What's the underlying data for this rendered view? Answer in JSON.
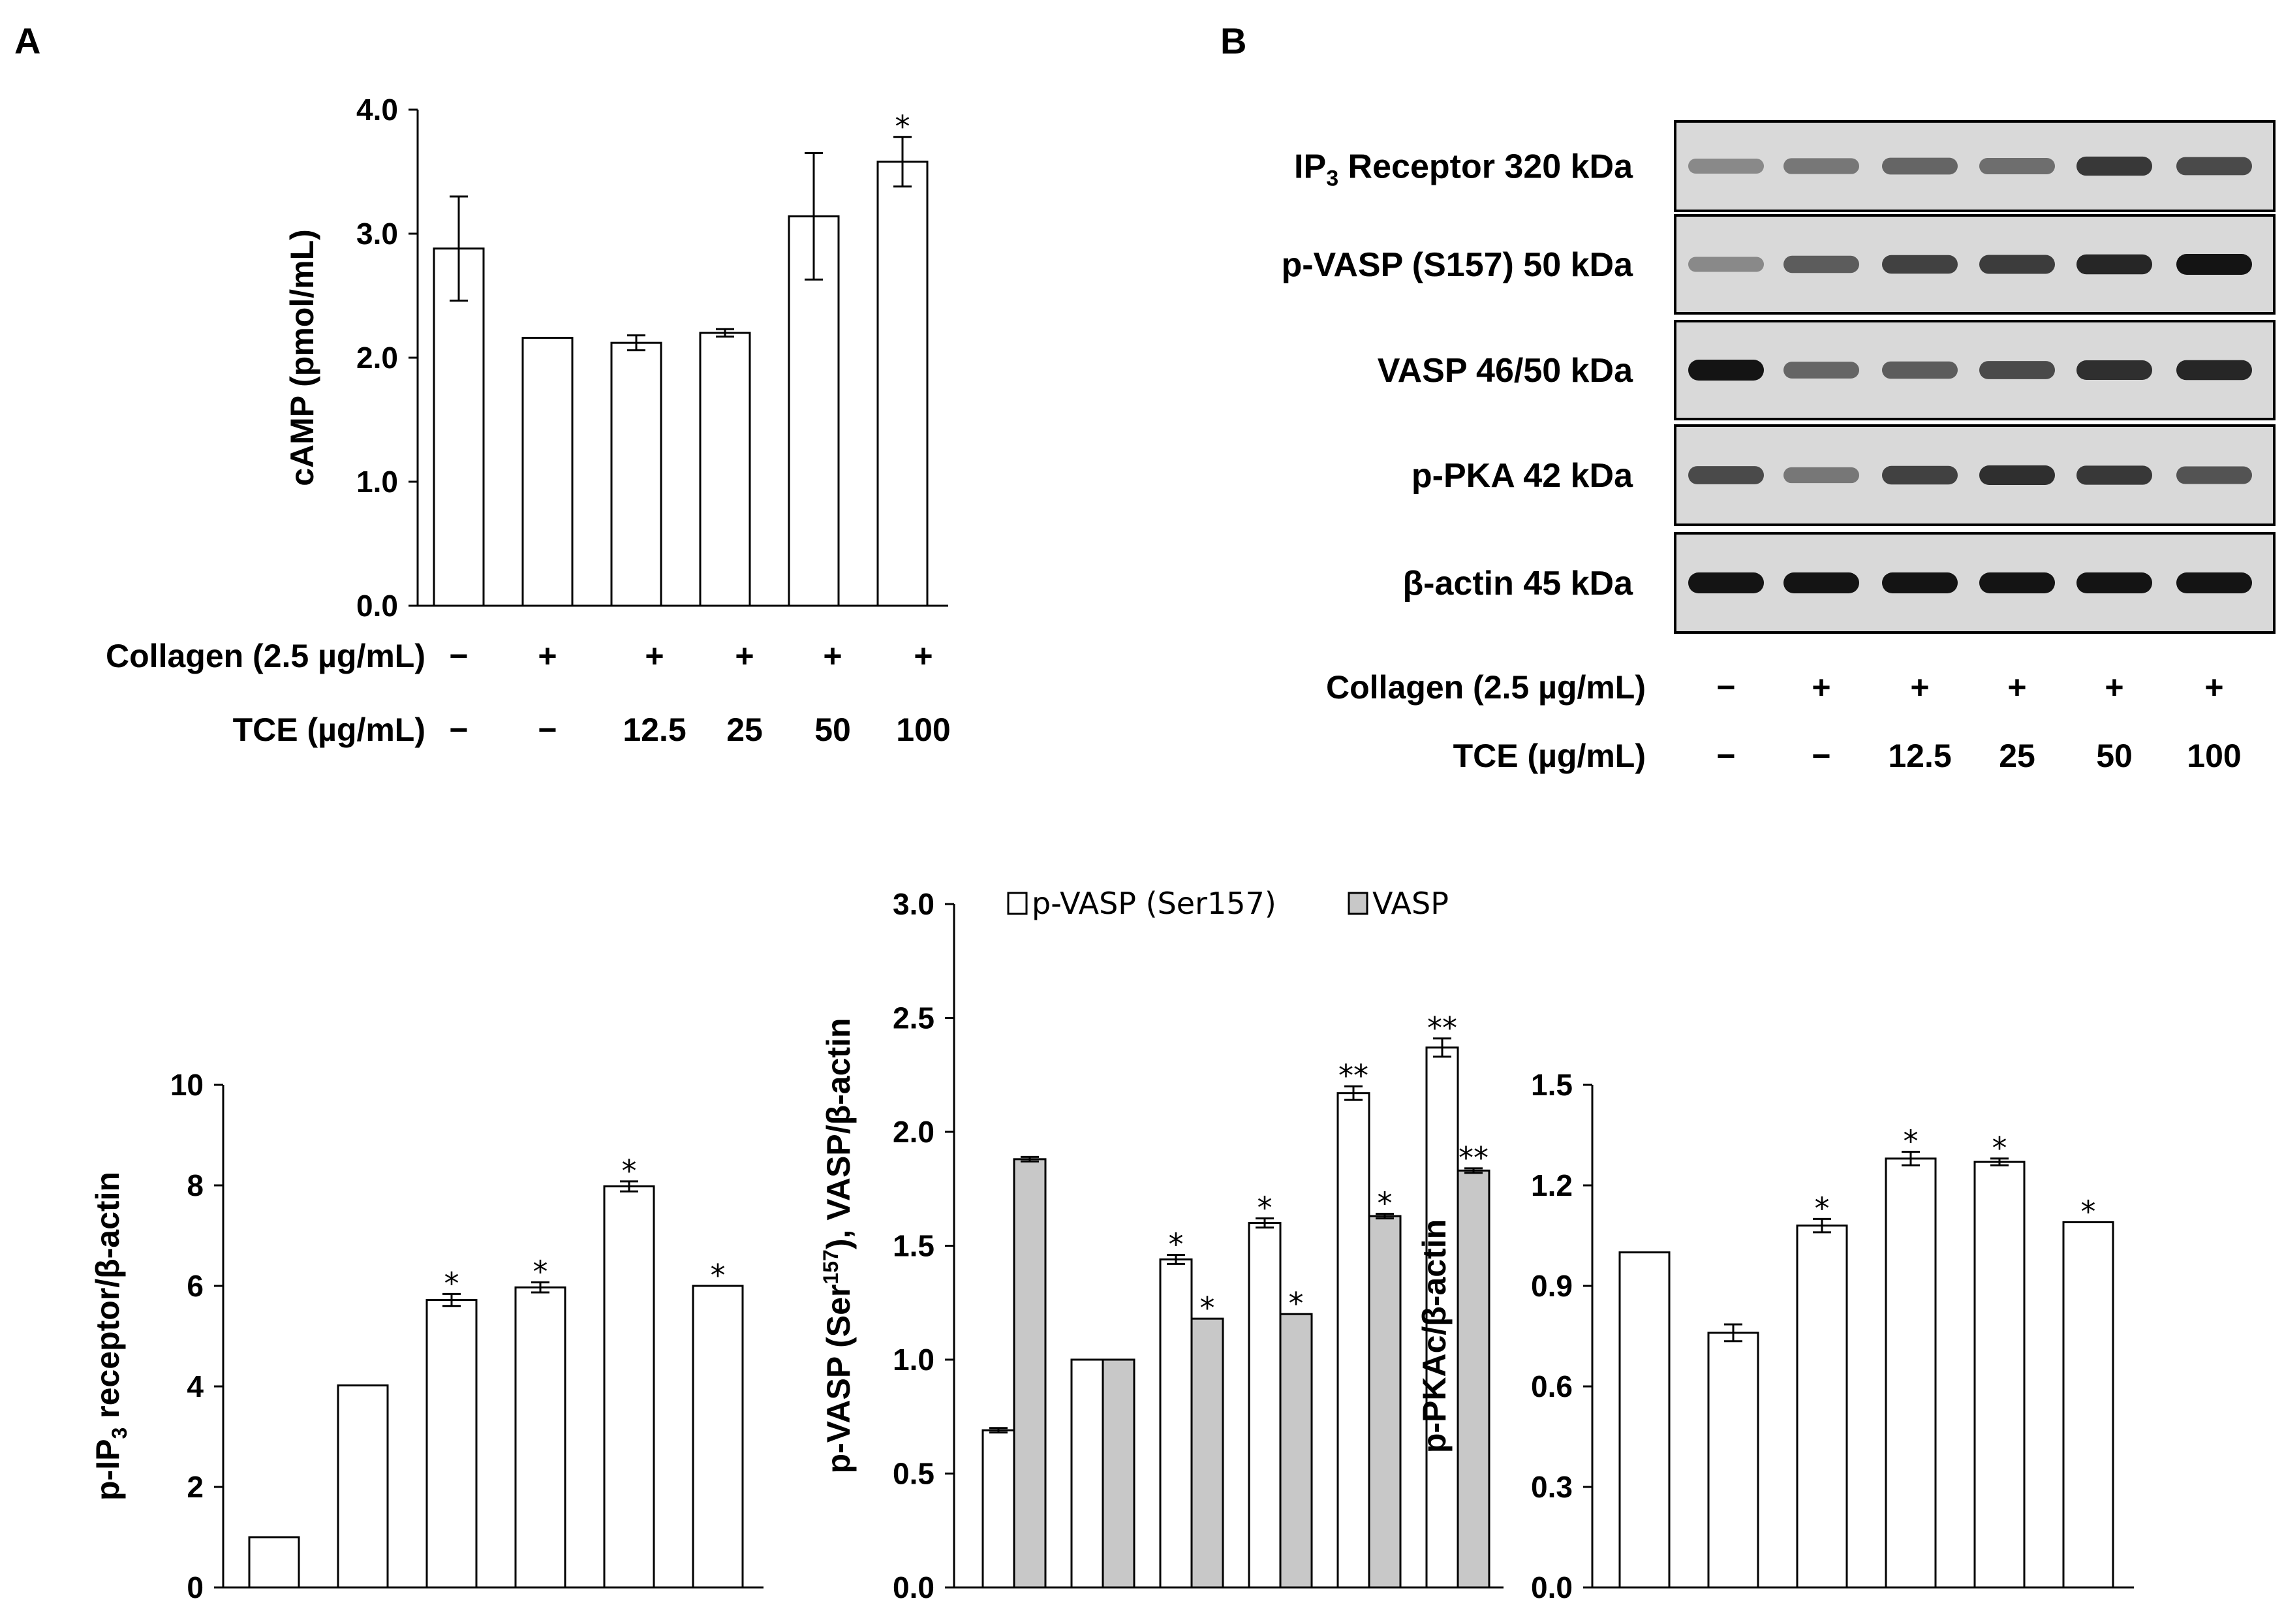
{
  "panel_a": {
    "letter": "A",
    "row1_label": "Collagen (2.5 µg/mL)",
    "row2_label": "TCE (µg/mL)",
    "row1": [
      "−",
      "+",
      "+",
      "+",
      "+",
      "+"
    ],
    "row2": [
      "−",
      "−",
      "12.5",
      "25",
      "50",
      "100"
    ]
  },
  "panel_b": {
    "letter": "B",
    "blot_labels": [
      {
        "main": "IP",
        "sub": "3",
        "rest": " Receptor 320 kDa"
      },
      {
        "main": "p-VASP (S157) 50 kDa",
        "sub": "",
        "rest": ""
      },
      {
        "main": "VASP 46/50 kDa",
        "sub": "",
        "rest": ""
      },
      {
        "main": "p-PKA 42 kDa",
        "sub": "",
        "rest": ""
      },
      {
        "main": "β-actin 45 kDa",
        "sub": "",
        "rest": ""
      }
    ],
    "blot_intensity": [
      [
        0.35,
        0.45,
        0.55,
        0.5,
        0.8,
        0.7
      ],
      [
        0.35,
        0.6,
        0.75,
        0.78,
        0.9,
        1.0
      ],
      [
        1.0,
        0.55,
        0.6,
        0.7,
        0.85,
        0.9
      ],
      [
        0.7,
        0.45,
        0.75,
        0.85,
        0.8,
        0.65
      ],
      [
        1.0,
        1.0,
        1.0,
        1.0,
        1.0,
        1.0
      ]
    ],
    "row1_label": "Collagen (2.5 µg/mL)",
    "row2_label": "TCE (µg/mL)",
    "row1": [
      "−",
      "+",
      "+",
      "+",
      "+",
      "+"
    ],
    "row2": [
      "−",
      "−",
      "12.5",
      "25",
      "50",
      "100"
    ]
  },
  "chart_data": [
    {
      "id": "camp",
      "type": "bar",
      "ylabel": "cAMP (pmol/mL)",
      "ylim": [
        0,
        4
      ],
      "yticks": [
        "0.0",
        "1.0",
        "2.0",
        "3.0",
        "4.0"
      ],
      "ytick_values": [
        0,
        1,
        2,
        3,
        4
      ],
      "series": [
        {
          "name": "cAMP",
          "color": "#ffffff",
          "values": [
            2.88,
            2.16,
            2.12,
            2.2,
            3.14,
            3.58
          ],
          "errors": [
            0.42,
            0.0,
            0.06,
            0.03,
            0.51,
            0.2
          ],
          "sig": [
            "",
            "",
            "",
            "",
            "",
            "*"
          ]
        }
      ]
    },
    {
      "id": "ip3",
      "type": "bar",
      "ylabel": "p-IP3 receptor/β-actin",
      "ylabel_parts": [
        "p-IP",
        "3",
        " receptor/β-actin"
      ],
      "ylim": [
        0,
        10
      ],
      "yticks": [
        "0",
        "2",
        "4",
        "6",
        "8",
        "10"
      ],
      "ytick_values": [
        0,
        2,
        4,
        6,
        8,
        10
      ],
      "series": [
        {
          "name": "p-IP3 receptor",
          "color": "#ffffff",
          "values": [
            1.0,
            4.02,
            5.72,
            5.97,
            7.98,
            6.0
          ],
          "errors": [
            0.0,
            0.0,
            0.12,
            0.1,
            0.1,
            0.0
          ],
          "sig": [
            "",
            "",
            "*",
            "*",
            "*",
            "*"
          ]
        }
      ]
    },
    {
      "id": "vasp",
      "type": "bar",
      "ylabel": "p-VASP (Ser157), VASP/β-actin",
      "ylabel_parts": [
        "p-VASP (Ser",
        "157",
        "), VASP/β-actin"
      ],
      "ylim": [
        0,
        3
      ],
      "yticks": [
        "0.0",
        "0.5",
        "1.0",
        "1.5",
        "2.0",
        "2.5",
        "3.0"
      ],
      "ytick_values": [
        0,
        0.5,
        1.0,
        1.5,
        2.0,
        2.5,
        3.0
      ],
      "legend": [
        "p-VASP (Ser157)",
        "VASP"
      ],
      "series": [
        {
          "name": "p-VASP (Ser157)",
          "color": "#ffffff",
          "values": [
            0.69,
            1.0,
            1.44,
            1.6,
            2.17,
            2.37
          ],
          "errors": [
            0.01,
            0.0,
            0.02,
            0.02,
            0.03,
            0.04
          ],
          "sig": [
            "",
            "",
            "*",
            "*",
            "**",
            "**"
          ]
        },
        {
          "name": "VASP",
          "color": "#c8c8c8",
          "values": [
            1.88,
            1.0,
            1.18,
            1.2,
            1.63,
            1.83
          ],
          "errors": [
            0.01,
            0.0,
            0.0,
            0.0,
            0.01,
            0.01
          ],
          "sig": [
            "",
            "",
            "*",
            "*",
            "*",
            "**"
          ]
        }
      ]
    },
    {
      "id": "pka",
      "type": "bar",
      "ylabel": "p-PKAc/β-actin",
      "ylim": [
        0,
        1.5
      ],
      "yticks": [
        "0.0",
        "0.3",
        "0.6",
        "0.9",
        "1.2",
        "1.5"
      ],
      "ytick_values": [
        0,
        0.3,
        0.6,
        0.9,
        1.2,
        1.5
      ],
      "series": [
        {
          "name": "p-PKAc",
          "color": "#ffffff",
          "values": [
            1.0,
            0.76,
            1.08,
            1.28,
            1.27,
            1.09
          ],
          "errors": [
            0.0,
            0.025,
            0.02,
            0.02,
            0.01,
            0.0
          ],
          "sig": [
            "",
            "",
            "*",
            "*",
            "*",
            "*"
          ]
        }
      ]
    }
  ]
}
